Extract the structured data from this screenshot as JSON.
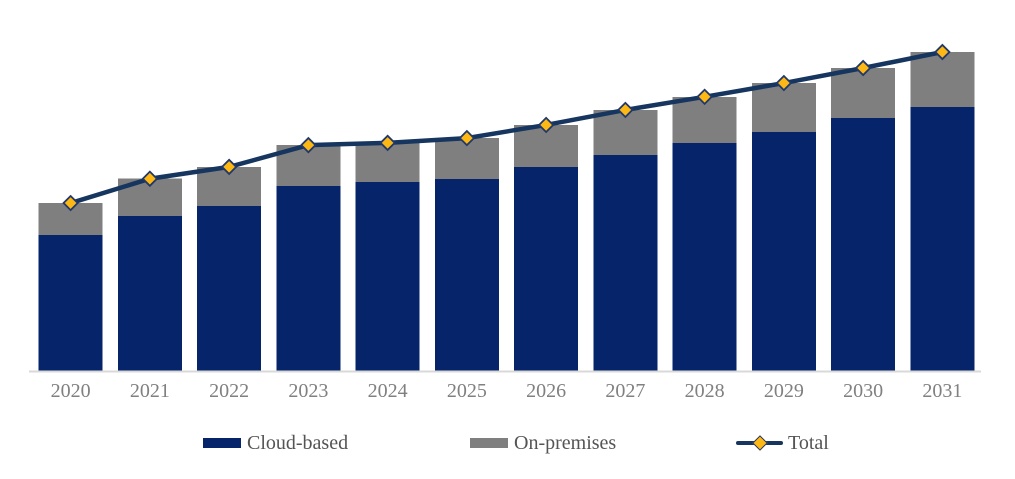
{
  "chart_data": {
    "type": "bar",
    "subtype": "stacked-column-with-line-overlay",
    "title": "",
    "xlabel": "",
    "ylabel": "",
    "categories": [
      "2020",
      "2021",
      "2022",
      "2023",
      "2024",
      "2025",
      "2026",
      "2027",
      "2028",
      "2029",
      "2030",
      "2031"
    ],
    "series": [
      {
        "name": "Cloud-based",
        "type": "bar",
        "stack": "total",
        "color": "#06246a",
        "values": [
          42.8,
          48.8,
          51.9,
          58.1,
          59.4,
          60.3,
          64.1,
          67.8,
          71.6,
          75.0,
          79.4,
          82.8
        ]
      },
      {
        "name": "On-premises",
        "type": "bar",
        "stack": "total",
        "color": "#7f7f7f",
        "values": [
          10.0,
          11.6,
          12.2,
          12.8,
          12.2,
          12.8,
          13.1,
          14.1,
          14.4,
          15.3,
          15.6,
          17.2
        ]
      },
      {
        "name": "Total",
        "type": "line",
        "color": "#16355f",
        "marker": {
          "shape": "diamond",
          "fill": "#fdb813",
          "stroke": "#21386b"
        },
        "values": [
          52.8,
          60.4,
          64.1,
          70.9,
          71.6,
          73.1,
          77.2,
          81.9,
          86.0,
          90.3,
          95.0,
          100.0
        ]
      }
    ],
    "y_axis": {
      "visible": false,
      "ylim": [
        0,
        116
      ],
      "units": "relative (no axis labels shown in image)"
    },
    "x_axis": {
      "visible": true,
      "tick_label_color": "#808080",
      "axis_line_color": "#d9d9d9"
    },
    "grid": false,
    "legend_position": "bottom",
    "legend_text_color": "#545454",
    "background_color": "#ffffff"
  }
}
